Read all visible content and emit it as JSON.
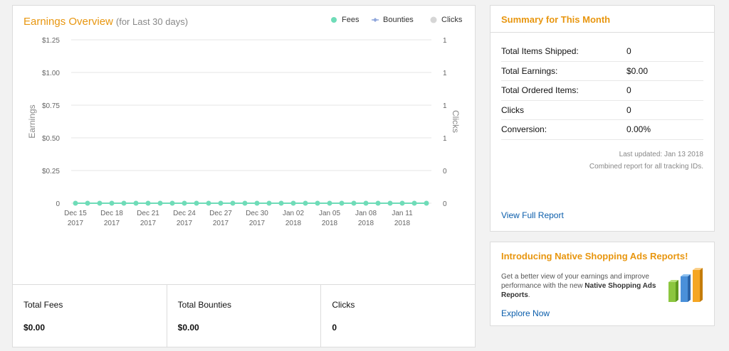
{
  "earnings": {
    "title": "Earnings Overview",
    "subtitle": "(for Last 30 days)",
    "legend": [
      {
        "label": "Fees",
        "color": "#6fdcb8",
        "marker": "circle"
      },
      {
        "label": "Bounties",
        "color": "#8fa6db",
        "marker": "diamond"
      },
      {
        "label": "Clicks",
        "color": "#d6d6d6",
        "marker": "circle"
      }
    ]
  },
  "chart_data": {
    "type": "line",
    "title": "Earnings Overview",
    "subtitle": "(for Last 30 days)",
    "ylabel": "Earnings",
    "y2label": "Clicks",
    "ylim": [
      0,
      1.25
    ],
    "y_ticks": [
      "0",
      "$0.25",
      "$0.50",
      "$0.75",
      "$1.00",
      "$1.25"
    ],
    "y2_ticks": [
      "0",
      "0",
      "1",
      "1",
      "1",
      "1"
    ],
    "x": [
      "Dec 15 2017",
      "Dec 16 2017",
      "Dec 17 2017",
      "Dec 18 2017",
      "Dec 19 2017",
      "Dec 20 2017",
      "Dec 21 2017",
      "Dec 22 2017",
      "Dec 23 2017",
      "Dec 24 2017",
      "Dec 25 2017",
      "Dec 26 2017",
      "Dec 27 2017",
      "Dec 28 2017",
      "Dec 29 2017",
      "Dec 30 2017",
      "Dec 31 2017",
      "Jan 01 2018",
      "Jan 02 2018",
      "Jan 03 2018",
      "Jan 04 2018",
      "Jan 05 2018",
      "Jan 06 2018",
      "Jan 07 2018",
      "Jan 08 2018",
      "Jan 09 2018",
      "Jan 10 2018",
      "Jan 11 2018",
      "Jan 12 2018",
      "Jan 13 2018"
    ],
    "x_tick_labels": [
      {
        "line1": "Dec 15",
        "line2": "2017"
      },
      {
        "line1": "Dec 18",
        "line2": "2017"
      },
      {
        "line1": "Dec 21",
        "line2": "2017"
      },
      {
        "line1": "Dec 24",
        "line2": "2017"
      },
      {
        "line1": "Dec 27",
        "line2": "2017"
      },
      {
        "line1": "Dec 30",
        "line2": "2017"
      },
      {
        "line1": "Jan 02",
        "line2": "2018"
      },
      {
        "line1": "Jan 05",
        "line2": "2018"
      },
      {
        "line1": "Jan 08",
        "line2": "2018"
      },
      {
        "line1": "Jan 11",
        "line2": "2018"
      }
    ],
    "series": [
      {
        "name": "Fees",
        "color": "#6fdcb8",
        "values": [
          0,
          0,
          0,
          0,
          0,
          0,
          0,
          0,
          0,
          0,
          0,
          0,
          0,
          0,
          0,
          0,
          0,
          0,
          0,
          0,
          0,
          0,
          0,
          0,
          0,
          0,
          0,
          0,
          0,
          0
        ]
      }
    ],
    "grid": true,
    "legend_position": "top-right"
  },
  "totals": [
    {
      "label": "Total Fees",
      "value": "$0.00"
    },
    {
      "label": "Total Bounties",
      "value": "$0.00"
    },
    {
      "label": "Clicks",
      "value": "0"
    }
  ],
  "summary": {
    "title": "Summary for This Month",
    "rows": [
      {
        "label": "Total Items Shipped:",
        "value": "0"
      },
      {
        "label": "Total Earnings:",
        "value": "$0.00"
      },
      {
        "label": "Total Ordered Items:",
        "value": "0"
      },
      {
        "label": "Clicks",
        "value": "0"
      },
      {
        "label": "Conversion:",
        "value": "0.00%"
      }
    ],
    "last_updated": "Last updated: Jan 13 2018",
    "combined_note": "Combined report for all tracking IDs.",
    "report_link": "View Full Report"
  },
  "promo": {
    "title": "Introducing Native Shopping Ads Reports!",
    "text_before": "Get a better view of your earnings and improve performance with the new ",
    "text_bold": "Native Shopping Ads Reports",
    "text_after": ".",
    "link": "Explore Now",
    "graphic_colors": [
      "#8cc63f",
      "#4a90d9",
      "#f5a623"
    ]
  }
}
